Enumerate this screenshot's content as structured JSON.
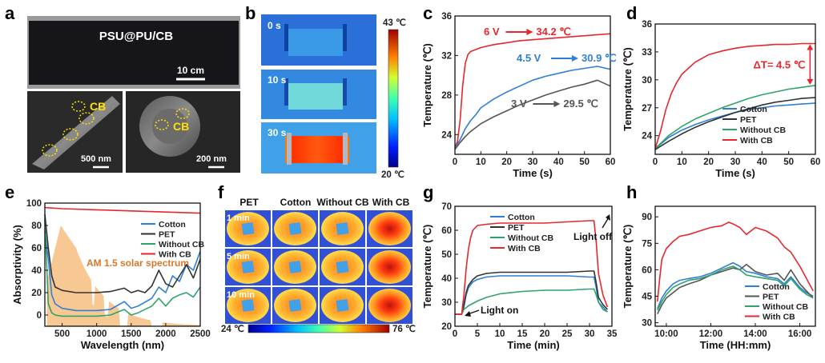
{
  "panel_letters": [
    "a",
    "b",
    "c",
    "d",
    "e",
    "f",
    "g",
    "h"
  ],
  "panel_a": {
    "fabric_label": "PSU@PU/CB",
    "scale_fabric": "10 cm",
    "sem1_label": "CB",
    "sem1_scale": "500 nm",
    "sem2_label": "CB",
    "sem2_scale": "200 nm"
  },
  "panel_b": {
    "times": [
      "0 s",
      "10 s",
      "30 s"
    ],
    "colorbar_max": "43 ℃",
    "colorbar_min": "20 ℃"
  },
  "panel_f": {
    "columns": [
      "PET",
      "Cotton",
      "Without CB",
      "With CB"
    ],
    "times": [
      "1 min",
      "5 min",
      "10 min"
    ],
    "colorbar_min": "24 ℃",
    "colorbar_max": "76 ℃"
  },
  "colors": {
    "red": "#e8262b",
    "blue": "#2f7fd4",
    "gray": "#555555",
    "green": "#2ea36b",
    "orange": "#f6b56f"
  },
  "chart_data": [
    {
      "id": "c",
      "type": "line",
      "xlabel": "Time (s)",
      "ylabel": "Temperature (℃)",
      "xlim": [
        0,
        60
      ],
      "ylim": [
        22,
        36
      ],
      "xticks": [
        0,
        10,
        20,
        30,
        40,
        50,
        60
      ],
      "yticks": [
        24,
        28,
        32,
        36
      ],
      "series": [
        {
          "name": "6 V",
          "color": "#e8262b",
          "x": [
            0,
            1,
            2,
            3,
            4,
            5,
            6,
            8,
            10,
            15,
            20,
            25,
            30,
            40,
            50,
            60
          ],
          "y": [
            22.7,
            23.3,
            25.5,
            29.0,
            31.2,
            32.1,
            32.4,
            32.6,
            32.8,
            33.1,
            33.3,
            33.5,
            33.6,
            33.8,
            34.0,
            34.2
          ]
        },
        {
          "name": "4.5 V",
          "color": "#2f7fd4",
          "x": [
            0,
            2,
            4,
            6,
            8,
            10,
            15,
            20,
            25,
            30,
            35,
            40,
            45,
            50,
            55,
            60
          ],
          "y": [
            22.6,
            23.5,
            24.6,
            25.4,
            26.0,
            26.7,
            27.6,
            28.3,
            28.9,
            29.5,
            29.9,
            30.2,
            30.5,
            30.7,
            30.9,
            30.6
          ]
        },
        {
          "name": "3 V",
          "color": "#555555",
          "x": [
            0,
            2,
            4,
            6,
            8,
            10,
            15,
            20,
            25,
            30,
            35,
            40,
            45,
            50,
            55,
            60
          ],
          "y": [
            22.5,
            23.2,
            23.8,
            24.3,
            24.7,
            25.1,
            25.8,
            26.4,
            27.0,
            27.5,
            28.0,
            28.4,
            28.8,
            29.1,
            29.5,
            28.9
          ]
        }
      ],
      "annotations": [
        {
          "text": "6 V",
          "value": "34.2 ℃",
          "color": "#e8262b"
        },
        {
          "text": "4.5 V",
          "value": "30.9 ℃",
          "color": "#2f7fd4"
        },
        {
          "text": "3 V",
          "value": "29.5 ℃",
          "color": "#555555"
        }
      ]
    },
    {
      "id": "d",
      "type": "line",
      "xlabel": "Time (s)",
      "ylabel": "Temperature (℃)",
      "xlim": [
        0,
        60
      ],
      "ylim": [
        22,
        36
      ],
      "xticks": [
        0,
        10,
        20,
        30,
        40,
        50,
        60
      ],
      "yticks": [
        24,
        27,
        30,
        33,
        36
      ],
      "annotation": "ΔT= 4.5 ℃",
      "series": [
        {
          "name": "Cotton",
          "color": "#2f7fd4",
          "x": [
            0,
            5,
            10,
            15,
            20,
            25,
            30,
            35,
            40,
            45,
            50,
            55,
            60
          ],
          "y": [
            22.6,
            23.8,
            24.6,
            25.2,
            25.7,
            26.1,
            26.5,
            26.8,
            27.0,
            27.2,
            27.3,
            27.4,
            27.5
          ]
        },
        {
          "name": "PET",
          "color": "#333333",
          "x": [
            0,
            5,
            10,
            15,
            20,
            25,
            30,
            35,
            40,
            45,
            50,
            55,
            60
          ],
          "y": [
            22.5,
            23.4,
            24.2,
            24.9,
            25.5,
            26.0,
            26.5,
            26.9,
            27.3,
            27.6,
            27.8,
            28.0,
            28.1
          ]
        },
        {
          "name": "Without CB",
          "color": "#2ea36b",
          "x": [
            0,
            5,
            10,
            15,
            20,
            25,
            30,
            35,
            40,
            45,
            50,
            55,
            60
          ],
          "y": [
            22.6,
            24.0,
            25.0,
            25.8,
            26.4,
            27.0,
            27.5,
            28.0,
            28.4,
            28.7,
            29.0,
            29.2,
            29.4
          ]
        },
        {
          "name": "With CB",
          "color": "#e8262b",
          "x": [
            0,
            2,
            4,
            6,
            8,
            10,
            15,
            20,
            25,
            30,
            35,
            40,
            45,
            50,
            55,
            60
          ],
          "y": [
            22.6,
            24.5,
            26.8,
            28.5,
            29.7,
            30.6,
            31.9,
            32.7,
            33.1,
            33.4,
            33.6,
            33.7,
            33.8,
            33.8,
            33.9,
            33.9
          ]
        }
      ]
    },
    {
      "id": "e",
      "type": "line",
      "xlabel": "Wavelength (nm)",
      "ylabel": "Absorptivity (%)",
      "xlim": [
        250,
        2500
      ],
      "ylim": [
        -10,
        100
      ],
      "xticks": [
        500,
        1000,
        1500,
        2000,
        2500
      ],
      "yticks": [
        0,
        20,
        40,
        60,
        80,
        100
      ],
      "background_label": "AM 1.5 solar spectrum",
      "series": [
        {
          "name": "Cotton",
          "color": "#2f7fd4",
          "x": [
            250,
            300,
            350,
            400,
            500,
            700,
            1000,
            1200,
            1400,
            1500,
            1600,
            1800,
            1900,
            2000,
            2100,
            2200,
            2300,
            2400,
            2500
          ],
          "y": [
            75,
            50,
            18,
            10,
            6,
            4,
            4,
            5,
            12,
            6,
            8,
            15,
            25,
            20,
            35,
            30,
            45,
            40,
            57
          ]
        },
        {
          "name": "PET",
          "color": "#333333",
          "x": [
            250,
            300,
            350,
            400,
            500,
            700,
            1000,
            1200,
            1400,
            1500,
            1600,
            1700,
            1800,
            1900,
            2000,
            2100,
            2200,
            2300,
            2400,
            2500
          ],
          "y": [
            90,
            60,
            35,
            25,
            22,
            20,
            20,
            21,
            24,
            20,
            22,
            20,
            26,
            40,
            28,
            25,
            35,
            45,
            33,
            50
          ]
        },
        {
          "name": "Without CB",
          "color": "#2ea36b",
          "x": [
            250,
            300,
            350,
            400,
            500,
            700,
            1000,
            1200,
            1400,
            1500,
            1600,
            1800,
            1900,
            2000,
            2100,
            2200,
            2300,
            2400,
            2500
          ],
          "y": [
            85,
            10,
            2,
            0,
            -1,
            -1,
            -1,
            0,
            5,
            0,
            2,
            8,
            15,
            8,
            15,
            18,
            20,
            16,
            25
          ]
        },
        {
          "name": "With CB",
          "color": "#e8262b",
          "x": [
            250,
            500,
            1000,
            1500,
            2000,
            2500
          ],
          "y": [
            96,
            95,
            94,
            93,
            92,
            91
          ]
        }
      ]
    },
    {
      "id": "g",
      "type": "line",
      "xlabel": "Time (min)",
      "ylabel": "Temperature (℃)",
      "xlim": [
        0,
        35
      ],
      "ylim": [
        20,
        70
      ],
      "xticks": [
        0,
        5,
        10,
        15,
        20,
        25,
        30,
        35
      ],
      "yticks": [
        20,
        30,
        40,
        50,
        60,
        70
      ],
      "annotations": [
        "Light off",
        "Light on"
      ],
      "series": [
        {
          "name": "Cotton",
          "color": "#2f7fd4",
          "x": [
            0,
            1.5,
            2,
            2.5,
            3,
            4,
            5,
            7,
            10,
            15,
            20,
            25,
            30,
            31,
            31.5,
            32,
            33,
            34
          ],
          "y": [
            25,
            25,
            28,
            33,
            36,
            38.5,
            39.5,
            40.5,
            41,
            41,
            41,
            41,
            40.5,
            40.5,
            36,
            30,
            28,
            26
          ]
        },
        {
          "name": "PET",
          "color": "#333333",
          "x": [
            0,
            1.5,
            2,
            2.5,
            3,
            4,
            5,
            7,
            10,
            15,
            20,
            25,
            30,
            31,
            31.5,
            32,
            33,
            34
          ],
          "y": [
            25,
            25,
            29,
            34,
            37,
            39.5,
            41,
            42,
            42.5,
            42.5,
            42.5,
            42.5,
            43,
            43,
            38,
            32,
            29,
            27
          ]
        },
        {
          "name": "Without CB",
          "color": "#2ea36b",
          "x": [
            0,
            1.5,
            2,
            3,
            4,
            5,
            7,
            10,
            15,
            20,
            25,
            30,
            31,
            31.5,
            32,
            33,
            34
          ],
          "y": [
            25,
            25,
            27,
            28.5,
            29.5,
            30.5,
            32,
            33.5,
            34.5,
            35,
            35,
            35.5,
            35.5,
            33,
            30,
            27,
            26
          ]
        },
        {
          "name": "With CB",
          "color": "#e8262b",
          "x": [
            0,
            1.5,
            2,
            2.5,
            3,
            3.5,
            4,
            5,
            7,
            10,
            15,
            20,
            25,
            30,
            31,
            31.5,
            32,
            33,
            34
          ],
          "y": [
            25,
            25,
            33,
            44,
            52,
            57,
            60,
            62,
            62.5,
            63,
            63,
            63,
            63.5,
            64,
            64,
            55,
            42,
            33,
            28
          ]
        }
      ]
    },
    {
      "id": "h",
      "type": "line",
      "xlabel": "Time (HH:mm)",
      "ylabel": "Temperature (℃)",
      "xlim": [
        9.5,
        16.7
      ],
      "ylim": [
        28,
        96
      ],
      "xticks": [
        10,
        12,
        14,
        16
      ],
      "xticklabels": [
        "10:00",
        "12:00",
        "14:00",
        "16:00"
      ],
      "yticks": [
        30,
        45,
        60,
        75,
        90
      ],
      "series": [
        {
          "name": "Cotton",
          "color": "#2f7fd4",
          "x": [
            9.6,
            9.8,
            10.0,
            10.3,
            10.6,
            11.0,
            11.5,
            12.0,
            12.5,
            13.0,
            13.3,
            13.6,
            14.0,
            14.5,
            15.0,
            15.3,
            15.6,
            16.0,
            16.3,
            16.6
          ],
          "y": [
            38,
            44,
            48,
            52,
            54,
            55,
            56,
            58,
            61,
            64,
            62,
            59,
            58,
            56,
            55,
            52,
            56,
            50,
            47,
            45
          ]
        },
        {
          "name": "PET",
          "color": "#555555",
          "x": [
            9.6,
            9.8,
            10.0,
            10.3,
            10.6,
            11.0,
            11.5,
            12.0,
            12.5,
            13.0,
            13.3,
            13.6,
            14.0,
            14.5,
            15.0,
            15.3,
            15.6,
            16.0,
            16.3,
            16.6
          ],
          "y": [
            35,
            40,
            44,
            47,
            50,
            52,
            54,
            57,
            59,
            61,
            60,
            63,
            59,
            57,
            58,
            54,
            60,
            52,
            48,
            44
          ]
        },
        {
          "name": "Without CB",
          "color": "#2ea36b",
          "x": [
            9.6,
            9.8,
            10.0,
            10.3,
            10.6,
            11.0,
            11.5,
            12.0,
            12.5,
            13.0,
            13.3,
            13.6,
            14.0,
            14.5,
            15.0,
            15.3,
            15.6,
            16.0,
            16.3,
            16.6
          ],
          "y": [
            37,
            42,
            46,
            50,
            52,
            54,
            55,
            57,
            60,
            62,
            60,
            57,
            56,
            55,
            54,
            51,
            55,
            49,
            46,
            44
          ]
        },
        {
          "name": "With CB",
          "color": "#e8262b",
          "x": [
            9.6,
            9.7,
            9.8,
            10.0,
            10.3,
            10.6,
            11.0,
            11.5,
            12.0,
            12.5,
            12.8,
            13.0,
            13.3,
            13.6,
            14.0,
            14.5,
            15.0,
            15.3,
            15.6,
            16.0,
            16.3,
            16.6
          ],
          "y": [
            42,
            55,
            66,
            72,
            76,
            79,
            80,
            82,
            84,
            85,
            87,
            86,
            84,
            80,
            84,
            82,
            78,
            73,
            70,
            62,
            55,
            48
          ]
        }
      ]
    }
  ]
}
